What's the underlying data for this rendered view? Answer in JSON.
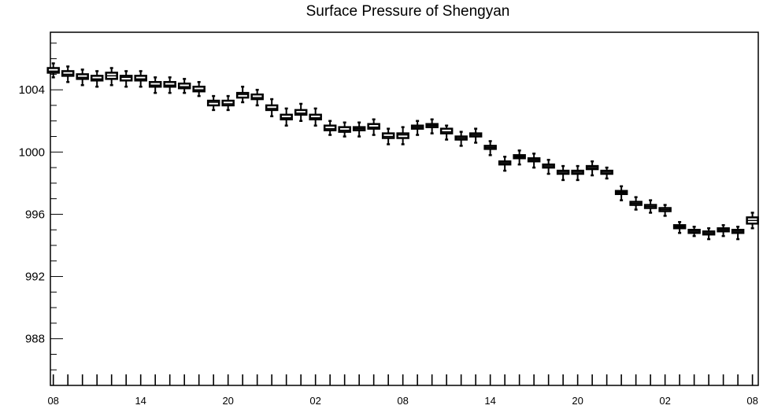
{
  "chart_data": {
    "type": "box",
    "title": "Surface Pressure of Shengyan",
    "xlabel": "",
    "ylabel": "",
    "ylim": [
      985,
      1007.7
    ],
    "xlim": [
      -0.2,
      48.4
    ],
    "y_ticks": [
      988,
      992,
      996,
      1000,
      1004
    ],
    "x_tick_labels": [
      "08",
      "14",
      "20",
      "02",
      "08",
      "14",
      "20",
      "02",
      "08"
    ],
    "x_tick_hours": [
      0,
      6,
      12,
      18,
      24,
      30,
      36,
      42,
      48
    ],
    "grid": false,
    "boxes": [
      {
        "x": 0,
        "q1": 1005.1,
        "median": 1005.2,
        "q3": 1005.4,
        "whisker_low": 1004.8,
        "whisker_high": 1005.7
      },
      {
        "x": 1,
        "q1": 1004.9,
        "median": 1005.0,
        "q3": 1005.2,
        "whisker_low": 1004.5,
        "whisker_high": 1005.5
      },
      {
        "x": 2,
        "q1": 1004.7,
        "median": 1004.8,
        "q3": 1005.0,
        "whisker_low": 1004.3,
        "whisker_high": 1005.3
      },
      {
        "x": 3,
        "q1": 1004.6,
        "median": 1004.7,
        "q3": 1004.9,
        "whisker_low": 1004.2,
        "whisker_high": 1005.2
      },
      {
        "x": 4,
        "q1": 1004.7,
        "median": 1004.9,
        "q3": 1005.1,
        "whisker_low": 1004.3,
        "whisker_high": 1005.4
      },
      {
        "x": 5,
        "q1": 1004.6,
        "median": 1004.8,
        "q3": 1004.9,
        "whisker_low": 1004.2,
        "whisker_high": 1005.2
      },
      {
        "x": 6,
        "q1": 1004.6,
        "median": 1004.7,
        "q3": 1004.9,
        "whisker_low": 1004.2,
        "whisker_high": 1005.2
      },
      {
        "x": 7,
        "q1": 1004.2,
        "median": 1004.3,
        "q3": 1004.5,
        "whisker_low": 1003.8,
        "whisker_high": 1004.8
      },
      {
        "x": 8,
        "q1": 1004.2,
        "median": 1004.3,
        "q3": 1004.5,
        "whisker_low": 1003.8,
        "whisker_high": 1004.8
      },
      {
        "x": 9,
        "q1": 1004.1,
        "median": 1004.2,
        "q3": 1004.4,
        "whisker_low": 1003.8,
        "whisker_high": 1004.7
      },
      {
        "x": 10,
        "q1": 1003.9,
        "median": 1004.0,
        "q3": 1004.2,
        "whisker_low": 1003.6,
        "whisker_high": 1004.5
      },
      {
        "x": 11,
        "q1": 1003.0,
        "median": 1003.2,
        "q3": 1003.3,
        "whisker_low": 1002.7,
        "whisker_high": 1003.6
      },
      {
        "x": 12,
        "q1": 1003.0,
        "median": 1003.1,
        "q3": 1003.3,
        "whisker_low": 1002.7,
        "whisker_high": 1003.6
      },
      {
        "x": 13,
        "q1": 1003.5,
        "median": 1003.7,
        "q3": 1003.8,
        "whisker_low": 1003.2,
        "whisker_high": 1004.2
      },
      {
        "x": 14,
        "q1": 1003.4,
        "median": 1003.5,
        "q3": 1003.7,
        "whisker_low": 1003.0,
        "whisker_high": 1004.0
      },
      {
        "x": 15,
        "q1": 1002.7,
        "median": 1002.8,
        "q3": 1003.0,
        "whisker_low": 1002.3,
        "whisker_high": 1003.4
      },
      {
        "x": 16,
        "q1": 1002.1,
        "median": 1002.2,
        "q3": 1002.4,
        "whisker_low": 1001.7,
        "whisker_high": 1002.8
      },
      {
        "x": 17,
        "q1": 1002.4,
        "median": 1002.5,
        "q3": 1002.7,
        "whisker_low": 1002.0,
        "whisker_high": 1003.1
      },
      {
        "x": 18,
        "q1": 1002.1,
        "median": 1002.2,
        "q3": 1002.4,
        "whisker_low": 1001.7,
        "whisker_high": 1002.8
      },
      {
        "x": 19,
        "q1": 1001.4,
        "median": 1001.5,
        "q3": 1001.7,
        "whisker_low": 1001.1,
        "whisker_high": 1002.0
      },
      {
        "x": 20,
        "q1": 1001.3,
        "median": 1001.4,
        "q3": 1001.6,
        "whisker_low": 1001.0,
        "whisker_high": 1001.9
      },
      {
        "x": 21,
        "q1": 1001.4,
        "median": 1001.5,
        "q3": 1001.6,
        "whisker_low": 1001.0,
        "whisker_high": 1001.9
      },
      {
        "x": 22,
        "q1": 1001.5,
        "median": 1001.6,
        "q3": 1001.8,
        "whisker_low": 1001.1,
        "whisker_high": 1002.1
      },
      {
        "x": 23,
        "q1": 1000.9,
        "median": 1001.0,
        "q3": 1001.2,
        "whisker_low": 1000.5,
        "whisker_high": 1001.5
      },
      {
        "x": 24,
        "q1": 1000.9,
        "median": 1001.1,
        "q3": 1001.2,
        "whisker_low": 1000.5,
        "whisker_high": 1001.6
      },
      {
        "x": 25,
        "q1": 1001.5,
        "median": 1001.6,
        "q3": 1001.7,
        "whisker_low": 1001.1,
        "whisker_high": 1002.0
      },
      {
        "x": 26,
        "q1": 1001.6,
        "median": 1001.7,
        "q3": 1001.8,
        "whisker_low": 1001.2,
        "whisker_high": 1002.1
      },
      {
        "x": 27,
        "q1": 1001.2,
        "median": 1001.3,
        "q3": 1001.5,
        "whisker_low": 1000.8,
        "whisker_high": 1001.7
      },
      {
        "x": 28,
        "q1": 1000.8,
        "median": 1000.9,
        "q3": 1001.0,
        "whisker_low": 1000.4,
        "whisker_high": 1001.3
      },
      {
        "x": 29,
        "q1": 1001.0,
        "median": 1001.1,
        "q3": 1001.2,
        "whisker_low": 1000.6,
        "whisker_high": 1001.5
      },
      {
        "x": 30,
        "q1": 1000.2,
        "median": 1000.3,
        "q3": 1000.4,
        "whisker_low": 999.8,
        "whisker_high": 1000.7
      },
      {
        "x": 31,
        "q1": 999.2,
        "median": 999.3,
        "q3": 999.4,
        "whisker_low": 998.8,
        "whisker_high": 999.7
      },
      {
        "x": 32,
        "q1": 999.6,
        "median": 999.7,
        "q3": 999.8,
        "whisker_low": 999.2,
        "whisker_high": 1000.1
      },
      {
        "x": 33,
        "q1": 999.4,
        "median": 999.5,
        "q3": 999.6,
        "whisker_low": 999.0,
        "whisker_high": 999.9
      },
      {
        "x": 34,
        "q1": 999.0,
        "median": 999.1,
        "q3": 999.2,
        "whisker_low": 998.6,
        "whisker_high": 999.5
      },
      {
        "x": 35,
        "q1": 998.6,
        "median": 998.7,
        "q3": 998.8,
        "whisker_low": 998.2,
        "whisker_high": 999.1
      },
      {
        "x": 36,
        "q1": 998.6,
        "median": 998.7,
        "q3": 998.8,
        "whisker_low": 998.2,
        "whisker_high": 999.1
      },
      {
        "x": 37,
        "q1": 998.9,
        "median": 999.0,
        "q3": 999.1,
        "whisker_low": 998.5,
        "whisker_high": 999.4
      },
      {
        "x": 38,
        "q1": 998.6,
        "median": 998.7,
        "q3": 998.8,
        "whisker_low": 998.3,
        "whisker_high": 999.0
      },
      {
        "x": 39,
        "q1": 997.3,
        "median": 997.4,
        "q3": 997.5,
        "whisker_low": 996.9,
        "whisker_high": 997.8
      },
      {
        "x": 40,
        "q1": 996.6,
        "median": 996.7,
        "q3": 996.8,
        "whisker_low": 996.3,
        "whisker_high": 997.1
      },
      {
        "x": 41,
        "q1": 996.4,
        "median": 996.5,
        "q3": 996.6,
        "whisker_low": 996.1,
        "whisker_high": 996.9
      },
      {
        "x": 42,
        "q1": 996.2,
        "median": 996.3,
        "q3": 996.4,
        "whisker_low": 995.9,
        "whisker_high": 996.6
      },
      {
        "x": 43,
        "q1": 995.1,
        "median": 995.2,
        "q3": 995.3,
        "whisker_low": 994.8,
        "whisker_high": 995.5
      },
      {
        "x": 44,
        "q1": 994.8,
        "median": 994.9,
        "q3": 995.0,
        "whisker_low": 994.6,
        "whisker_high": 995.2
      },
      {
        "x": 45,
        "q1": 994.7,
        "median": 994.8,
        "q3": 994.9,
        "whisker_low": 994.4,
        "whisker_high": 995.1
      },
      {
        "x": 46,
        "q1": 994.9,
        "median": 995.0,
        "q3": 995.1,
        "whisker_low": 994.6,
        "whisker_high": 995.3
      },
      {
        "x": 47,
        "q1": 994.8,
        "median": 994.9,
        "q3": 995.0,
        "whisker_low": 994.4,
        "whisker_high": 995.2
      },
      {
        "x": 48,
        "q1": 995.4,
        "median": 995.6,
        "q3": 995.8,
        "whisker_low": 995.1,
        "whisker_high": 996.1
      }
    ]
  }
}
